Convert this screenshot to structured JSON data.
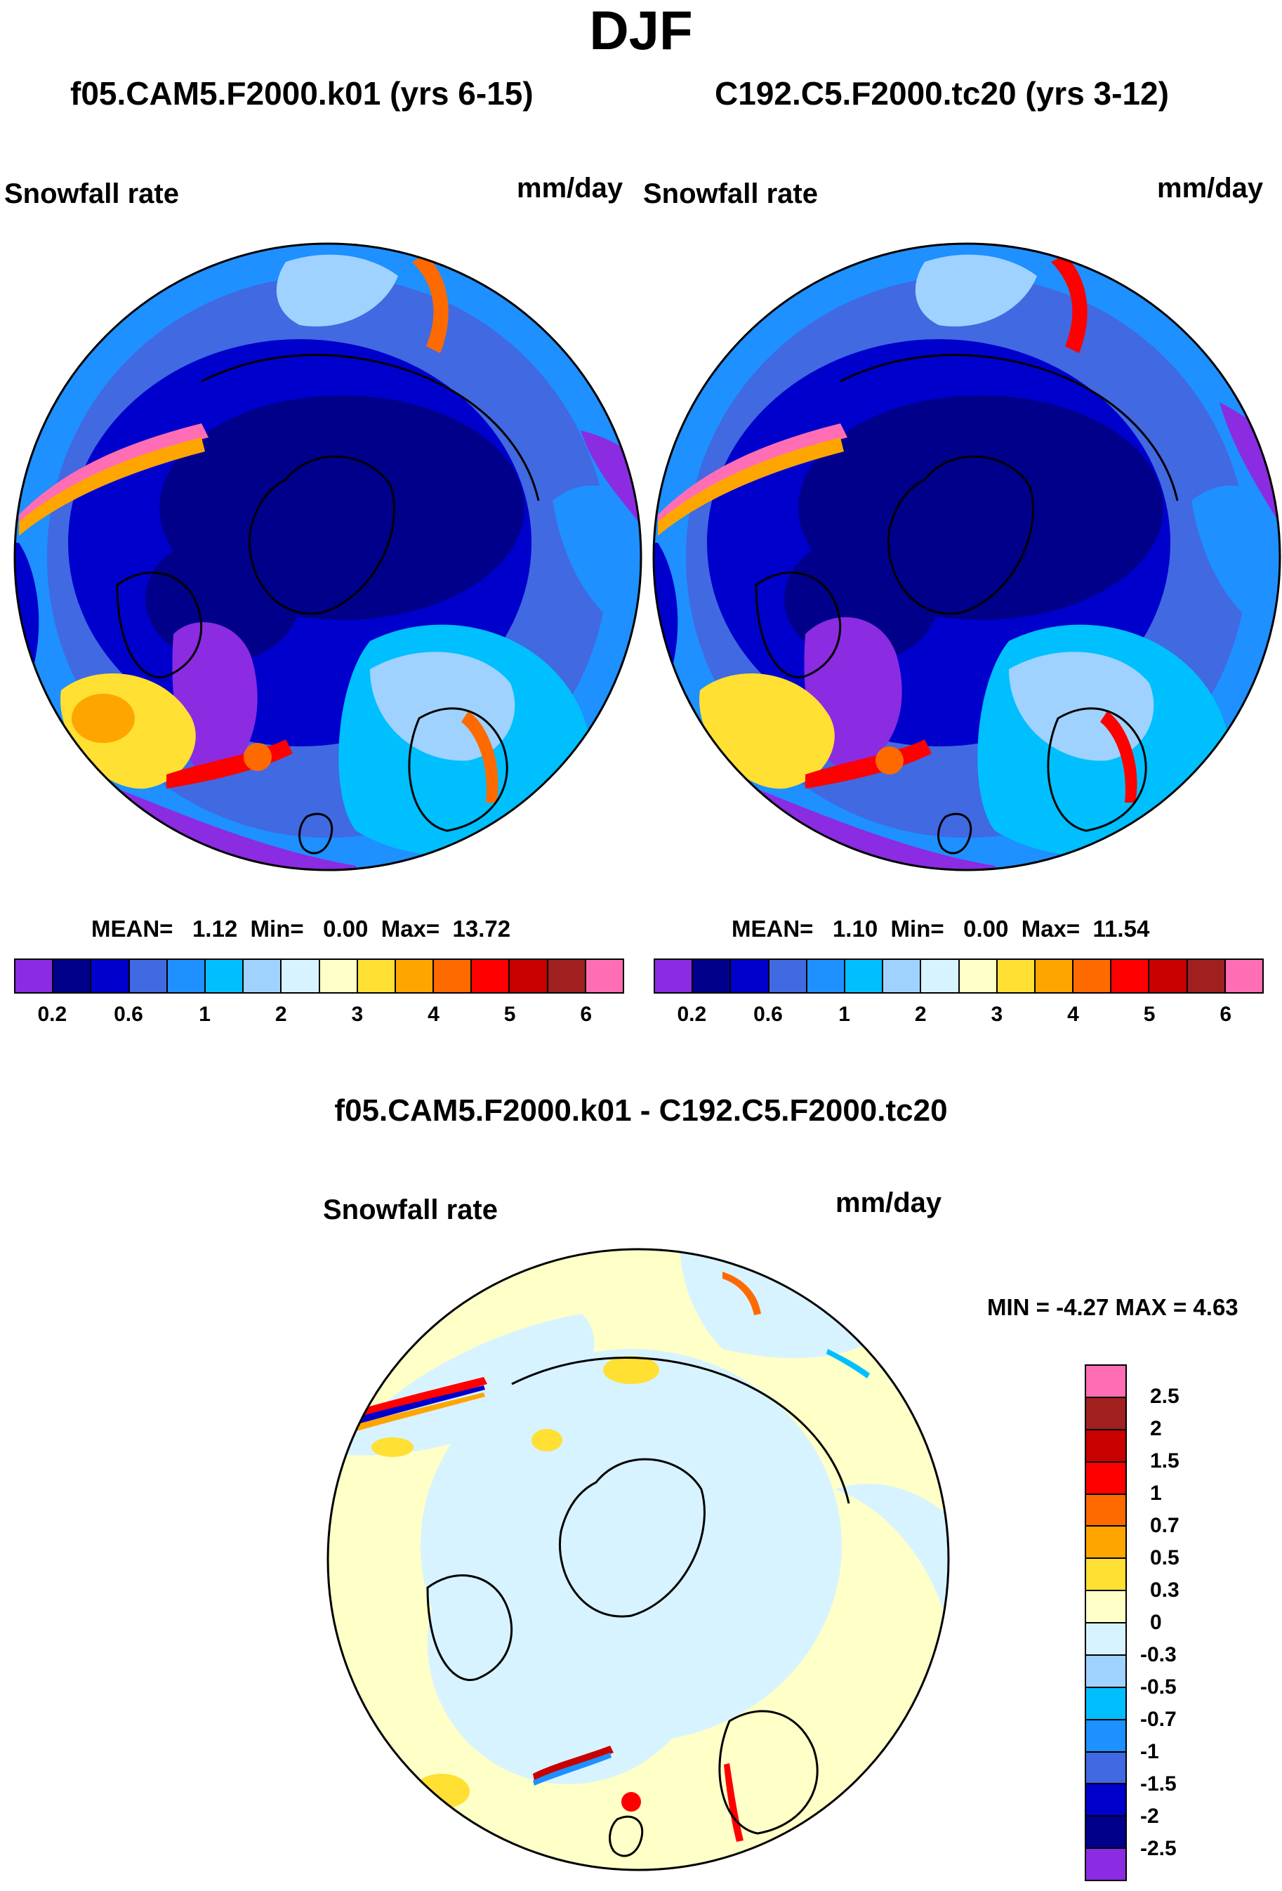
{
  "title": "DJF",
  "panels": [
    {
      "case": "f05.CAM5.F2000.k01 (yrs 6-15)",
      "variable": "Snowfall rate",
      "units": "mm/day",
      "stats": {
        "mean_label": "MEAN=",
        "mean": "1.12",
        "min_label": "Min=",
        "min": "0.00",
        "max_label": "Max=",
        "max": "13.72"
      }
    },
    {
      "case": "C192.C5.F2000.tc20 (yrs 3-12)",
      "variable": "Snowfall rate",
      "units": "mm/day",
      "stats": {
        "mean_label": "MEAN=",
        "mean": "1.10",
        "min_label": "Min=",
        "min": "0.00",
        "max_label": "Max=",
        "max": "11.54"
      }
    }
  ],
  "difference": {
    "title": "f05.CAM5.F2000.k01 - C192.C5.F2000.tc20",
    "variable": "Snowfall rate",
    "units": "mm/day",
    "minmax": "MIN =  -4.27 MAX =    4.63"
  },
  "colorbar_abs": {
    "colors": [
      "#8b2be2",
      "#00008b",
      "#0000cd",
      "#4169e1",
      "#1e90ff",
      "#00bfff",
      "#a0d2ff",
      "#d7f3ff",
      "#ffffc8",
      "#ffe033",
      "#ffa500",
      "#ff6a00",
      "#ff0000",
      "#c80000",
      "#a02020",
      "#ff6eb4"
    ],
    "labels": [
      "0.2",
      "0.6",
      "1",
      "2",
      "3",
      "4",
      "5",
      "6"
    ]
  },
  "colorbar_diff": {
    "colors": [
      "#ff6eb4",
      "#a02020",
      "#c80000",
      "#ff0000",
      "#ff6a00",
      "#ffa500",
      "#ffe033",
      "#ffffc8",
      "#d7f3ff",
      "#a0d2ff",
      "#00bfff",
      "#1e90ff",
      "#4169e1",
      "#0000cd",
      "#00008b",
      "#8b2be2"
    ],
    "labels": [
      "2.5",
      "2",
      "1.5",
      "1",
      "0.7",
      "0.5",
      "0.3",
      "0",
      "-0.3",
      "-0.5",
      "-0.7",
      "-1",
      "-1.5",
      "-2",
      "-2.5"
    ]
  }
}
